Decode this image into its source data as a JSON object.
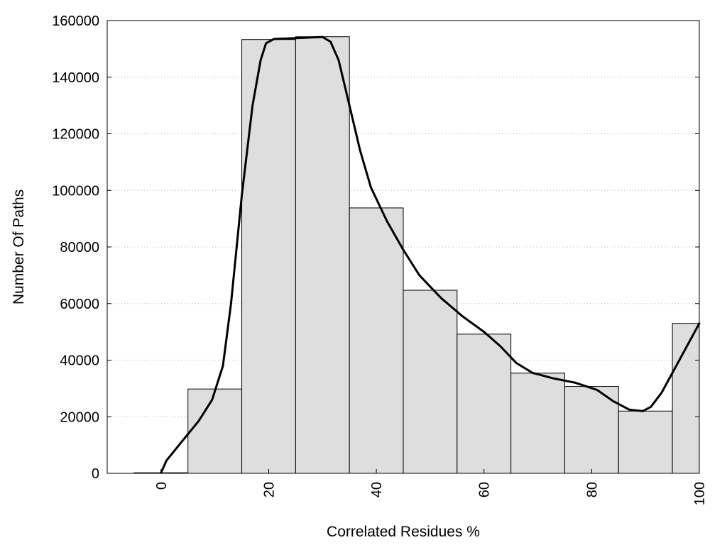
{
  "chart_data": {
    "type": "bar",
    "xlabel": "Correlated Residues %",
    "ylabel": "Number Of Paths",
    "xlim": [
      -10,
      100
    ],
    "ylim": [
      0,
      160000
    ],
    "grid": "horizontal dotted",
    "bins": [
      {
        "x0": -5,
        "x1": 5,
        "value": 200
      },
      {
        "x0": 5,
        "x1": 15,
        "value": 29800
      },
      {
        "x0": 15,
        "x1": 25,
        "value": 153300
      },
      {
        "x0": 25,
        "x1": 35,
        "value": 154300
      },
      {
        "x0": 35,
        "x1": 45,
        "value": 93800
      },
      {
        "x0": 45,
        "x1": 55,
        "value": 64700
      },
      {
        "x0": 55,
        "x1": 65,
        "value": 49200
      },
      {
        "x0": 65,
        "x1": 75,
        "value": 35400
      },
      {
        "x0": 75,
        "x1": 85,
        "value": 30700
      },
      {
        "x0": 85,
        "x1": 95,
        "value": 22000
      },
      {
        "x0": 95,
        "x1": 100,
        "value": 53000
      }
    ],
    "smooth_curve": [
      {
        "x": 0,
        "y": 200
      },
      {
        "x": 1,
        "y": 4500
      },
      {
        "x": 4,
        "y": 11500
      },
      {
        "x": 7,
        "y": 18500
      },
      {
        "x": 9.5,
        "y": 26000
      },
      {
        "x": 11.5,
        "y": 38000
      },
      {
        "x": 13,
        "y": 60000
      },
      {
        "x": 15,
        "y": 98000
      },
      {
        "x": 17,
        "y": 130000
      },
      {
        "x": 18.5,
        "y": 146000
      },
      {
        "x": 19.5,
        "y": 152000
      },
      {
        "x": 21,
        "y": 153500
      },
      {
        "x": 25,
        "y": 153800
      },
      {
        "x": 30,
        "y": 154200
      },
      {
        "x": 31.5,
        "y": 152500
      },
      {
        "x": 33,
        "y": 146000
      },
      {
        "x": 35,
        "y": 130000
      },
      {
        "x": 37,
        "y": 114000
      },
      {
        "x": 39,
        "y": 101000
      },
      {
        "x": 42,
        "y": 89000
      },
      {
        "x": 45,
        "y": 79000
      },
      {
        "x": 48,
        "y": 70000
      },
      {
        "x": 52,
        "y": 62000
      },
      {
        "x": 56,
        "y": 55500
      },
      {
        "x": 60,
        "y": 50000
      },
      {
        "x": 63,
        "y": 45000
      },
      {
        "x": 66,
        "y": 39000
      },
      {
        "x": 69,
        "y": 35500
      },
      {
        "x": 73,
        "y": 33500
      },
      {
        "x": 77,
        "y": 32000
      },
      {
        "x": 81,
        "y": 29500
      },
      {
        "x": 84,
        "y": 25500
      },
      {
        "x": 87,
        "y": 22500
      },
      {
        "x": 89.5,
        "y": 22000
      },
      {
        "x": 91,
        "y": 23500
      },
      {
        "x": 93,
        "y": 28500
      },
      {
        "x": 96,
        "y": 39000
      },
      {
        "x": 100,
        "y": 53000
      }
    ],
    "x_ticks": [
      "0",
      "20",
      "40",
      "60",
      "80",
      "100"
    ],
    "x_tick_values": [
      0,
      20,
      40,
      60,
      80,
      100
    ],
    "y_ticks": [
      "0",
      "20000",
      "40000",
      "60000",
      "80000",
      "100000",
      "120000",
      "140000",
      "160000"
    ],
    "y_tick_values": [
      0,
      20000,
      40000,
      60000,
      80000,
      100000,
      120000,
      140000,
      160000
    ],
    "bar_fill": "#dedede",
    "bar_stroke": "#000000",
    "curve_color": "#000000",
    "grid_color": "#b4b4b4"
  }
}
